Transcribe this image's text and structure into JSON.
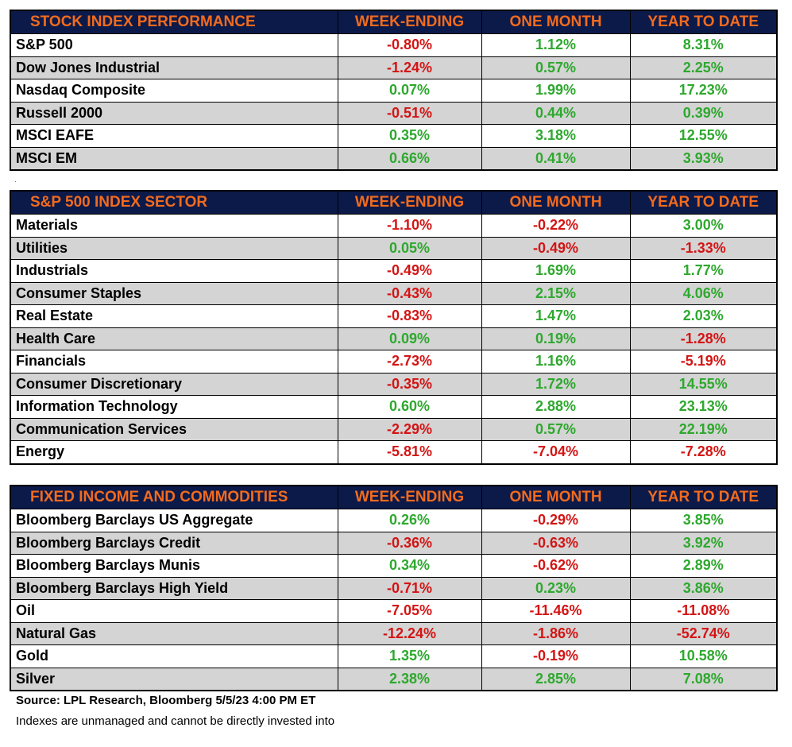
{
  "tables": [
    {
      "headers": [
        "STOCK INDEX PERFORMANCE",
        "WEEK-ENDING",
        "ONE MONTH",
        "YEAR TO DATE"
      ],
      "rows": [
        [
          "S&P 500",
          "-0.80%",
          "1.12%",
          "8.31%"
        ],
        [
          "Dow Jones Industrial",
          "-1.24%",
          "0.57%",
          "2.25%"
        ],
        [
          "Nasdaq Composite",
          "0.07%",
          "1.99%",
          "17.23%"
        ],
        [
          "Russell 2000",
          "-0.51%",
          "0.44%",
          "0.39%"
        ],
        [
          "MSCI EAFE",
          "0.35%",
          "3.18%",
          "12.55%"
        ],
        [
          "MSCI EM",
          "0.66%",
          "0.41%",
          "3.93%"
        ]
      ]
    },
    {
      "headers": [
        "S&P 500 INDEX SECTOR",
        "WEEK-ENDING",
        "ONE MONTH",
        "YEAR TO DATE"
      ],
      "rows": [
        [
          "Materials",
          "-1.10%",
          "-0.22%",
          "3.00%"
        ],
        [
          "Utilities",
          "0.05%",
          "-0.49%",
          "-1.33%"
        ],
        [
          "Industrials",
          "-0.49%",
          "1.69%",
          "1.77%"
        ],
        [
          "Consumer Staples",
          "-0.43%",
          "2.15%",
          "4.06%"
        ],
        [
          "Real Estate",
          "-0.83%",
          "1.47%",
          "2.03%"
        ],
        [
          "Health Care",
          "0.09%",
          "0.19%",
          "-1.28%"
        ],
        [
          "Financials",
          "-2.73%",
          "1.16%",
          "-5.19%"
        ],
        [
          "Consumer Discretionary",
          "-0.35%",
          "1.72%",
          "14.55%"
        ],
        [
          "Information Technology",
          "0.60%",
          "2.88%",
          "23.13%"
        ],
        [
          "Communication Services",
          "-2.29%",
          "0.57%",
          "22.19%"
        ],
        [
          "Energy",
          "-5.81%",
          "-7.04%",
          "-7.28%"
        ]
      ]
    },
    {
      "headers": [
        "FIXED INCOME AND COMMODITIES",
        "WEEK-ENDING",
        "ONE MONTH",
        "YEAR TO DATE"
      ],
      "rows": [
        [
          "Bloomberg Barclays US Aggregate",
          "0.26%",
          "-0.29%",
          "3.85%"
        ],
        [
          "Bloomberg Barclays Credit",
          "-0.36%",
          "-0.63%",
          "3.92%"
        ],
        [
          "Bloomberg Barclays Munis",
          "0.34%",
          "-0.62%",
          "2.89%"
        ],
        [
          "Bloomberg Barclays High Yield",
          "-0.71%",
          "0.23%",
          "3.86%"
        ],
        [
          "Oil",
          "-7.05%",
          "-11.46%",
          "-11.08%"
        ],
        [
          "Natural Gas",
          "-12.24%",
          "-1.86%",
          "-52.74%"
        ],
        [
          "Gold",
          "1.35%",
          "-0.19%",
          "10.58%"
        ],
        [
          "Silver",
          "2.38%",
          "2.85%",
          "7.08%"
        ]
      ]
    }
  ],
  "footer": {
    "source": "Source: LPL Research, Bloomberg 5/5/23 4:00 PM ET",
    "note": "Indexes are unmanaged and cannot be directly invested into"
  },
  "colors": {
    "header_bg": "#0c1a4a",
    "header_text": "#f26b1d",
    "negative": "#d41414",
    "positive": "#2ea82e",
    "stripe": "#d4d4d4"
  },
  "stray_mark": "."
}
